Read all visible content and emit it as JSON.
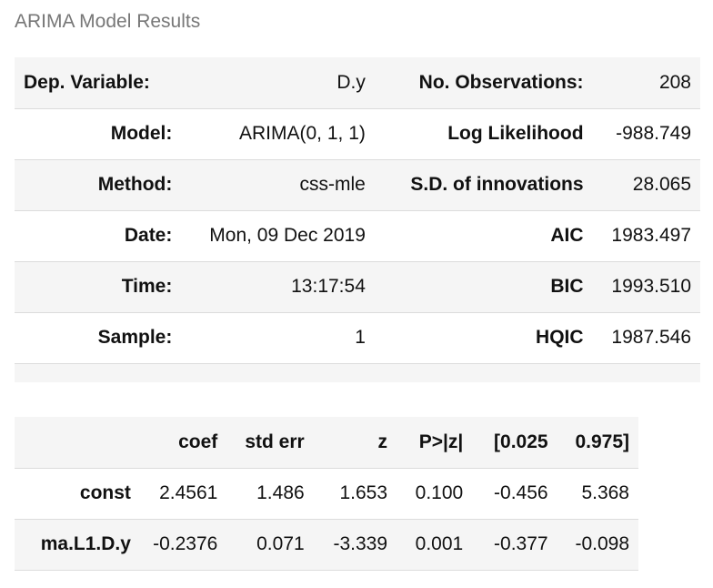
{
  "caption": "ARIMA Model Results",
  "summary": {
    "rows": [
      {
        "l1": "Dep. Variable:",
        "v1": "D.y",
        "l2": "No. Observations:",
        "v2": "208"
      },
      {
        "l1": "Model:",
        "v1": "ARIMA(0, 1, 1)",
        "l2": "Log Likelihood",
        "v2": "-988.749"
      },
      {
        "l1": "Method:",
        "v1": "css-mle",
        "l2": "S.D. of innovations",
        "v2": "28.065"
      },
      {
        "l1": "Date:",
        "v1": "Mon, 09 Dec 2019",
        "l2": "AIC",
        "v2": "1983.497"
      },
      {
        "l1": "Time:",
        "v1": "13:17:54",
        "l2": "BIC",
        "v2": "1993.510"
      },
      {
        "l1": "Sample:",
        "v1": "1",
        "l2": "HQIC",
        "v2": "1987.546"
      }
    ]
  },
  "coefficients": {
    "headers": [
      "",
      "coef",
      "std err",
      "z",
      "P>|z|",
      "[0.025",
      "0.975]"
    ],
    "rows": [
      {
        "name": "const",
        "values": [
          "2.4561",
          "1.486",
          "1.653",
          "0.100",
          "-0.456",
          "5.368"
        ]
      },
      {
        "name": "ma.L1.D.y",
        "values": [
          "-0.2376",
          "0.071",
          "-3.339",
          "0.001",
          "-0.377",
          "-0.098"
        ]
      }
    ]
  }
}
